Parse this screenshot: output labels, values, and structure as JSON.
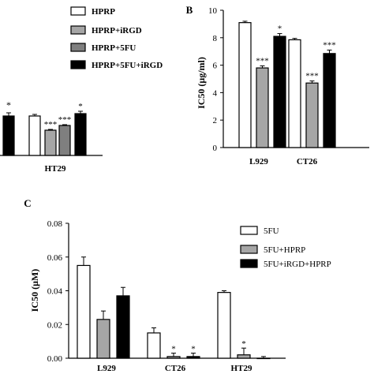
{
  "colors": {
    "hprp": "#ffffff",
    "hprp_irgd": "#a6a6a6",
    "hprp_5fu": "#7f7f7f",
    "hprp_5fu_irgd": "#000000",
    "axis": "#000000"
  },
  "chart_data": [
    {
      "panel": "",
      "type": "bar",
      "categories": [
        "HT29"
      ],
      "series": [
        {
          "name": "HPRP",
          "values": [
            5.0
          ]
        },
        {
          "name": "HPRP+iRGD",
          "values": [
            3.2
          ]
        },
        {
          "name": "HPRP+5FU",
          "values": [
            3.8
          ]
        },
        {
          "name": "HPRP+5FU+iRGD",
          "values": [
            5.3
          ]
        }
      ],
      "partial_bar": {
        "value": 5.0,
        "annotation": "*"
      },
      "annotations": [
        "***",
        "***",
        "*"
      ],
      "xlabel": "",
      "ylabel": "",
      "legend": {
        "placement": "top",
        "entries": [
          "HPRP",
          "HPRP+iRGD",
          "HPRP+5FU",
          "HPRP+5FU+iRGD"
        ]
      },
      "ylim": [
        0,
        10
      ]
    },
    {
      "panel": "B",
      "type": "bar",
      "categories": [
        "L929",
        "CT26"
      ],
      "series": [
        {
          "name": "HPRP",
          "values": [
            9.1,
            7.85
          ]
        },
        {
          "name": "HPRP+iRGD",
          "values": [
            5.8,
            4.7
          ]
        },
        {
          "name": "HPRP+5FU+iRGD",
          "values": [
            8.1,
            6.85
          ]
        }
      ],
      "errors": [
        [
          0.1,
          0.1
        ],
        [
          0.15,
          0.15
        ],
        [
          0.2,
          0.25
        ]
      ],
      "annotations": [
        [
          "",
          ""
        ],
        [
          "***",
          "***"
        ],
        [
          "*",
          "***"
        ]
      ],
      "ylabel": "IC50 (μg/ml)",
      "xlabel": "",
      "yticks": [
        "0",
        "2",
        "4",
        "6",
        "8",
        "10"
      ],
      "ylim": [
        0,
        10
      ]
    },
    {
      "panel": "C",
      "type": "bar",
      "categories": [
        "L929",
        "CT26",
        "HT29"
      ],
      "series": [
        {
          "name": "5FU",
          "values": [
            0.055,
            0.015,
            0.039
          ]
        },
        {
          "name": "5FU+HPRP",
          "values": [
            0.023,
            0.001,
            0.002
          ]
        },
        {
          "name": "5FU+iRGD+HPRP",
          "values": [
            0.037,
            0.001,
            0.0
          ]
        }
      ],
      "errors": [
        [
          0.005,
          0.003,
          0.001
        ],
        [
          0.005,
          0.002,
          0.004
        ],
        [
          0.005,
          0.002,
          0.001
        ]
      ],
      "annotations": [
        [
          "",
          "",
          ""
        ],
        [
          "",
          "*",
          "*"
        ],
        [
          "",
          "*",
          ""
        ]
      ],
      "ylabel": "IC50 (μM)",
      "xlabel": "",
      "yticks": [
        "0.00",
        "0.02",
        "0.04",
        "0.06",
        "0.08"
      ],
      "ylim": [
        0,
        0.08
      ],
      "legend": {
        "placement": "right",
        "entries": [
          "5FU",
          "5FU+HPRP",
          "5FU+iRGD+HPRP"
        ]
      }
    }
  ]
}
